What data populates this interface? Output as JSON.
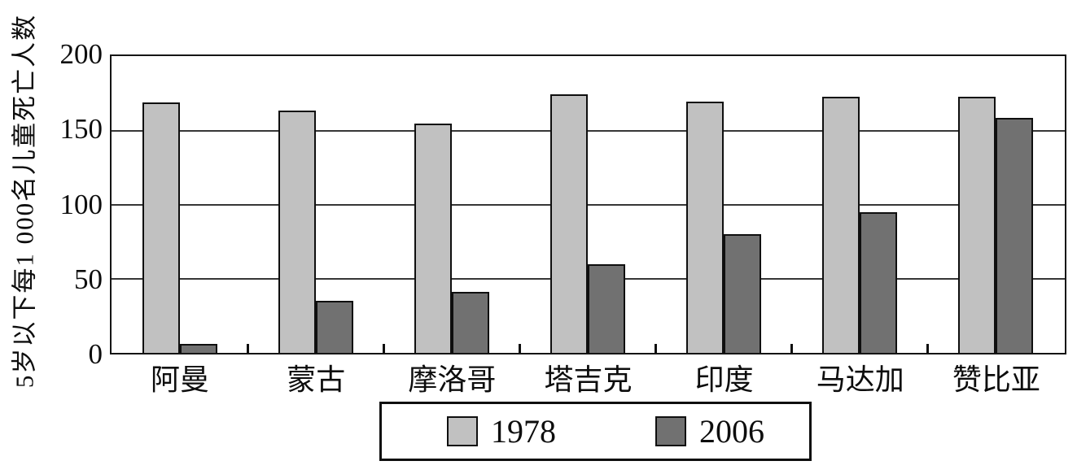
{
  "chart_data": {
    "type": "bar",
    "title": "",
    "ylabel": "5岁以下每1 000名儿童死亡人数",
    "xlabel": "",
    "categories": [
      "阿曼",
      "蒙古",
      "摩洛哥",
      "塔吉克",
      "印度",
      "马达加",
      "赞比亚"
    ],
    "series": [
      {
        "name": "1978",
        "color": "#c1c1c1",
        "values": [
          169,
          164,
          155,
          175,
          170,
          173,
          173
        ]
      },
      {
        "name": "2006",
        "color": "#717171",
        "values": [
          6,
          35,
          41,
          60,
          80,
          95,
          159
        ]
      }
    ],
    "ylim": [
      0,
      200
    ],
    "yticks": [
      0,
      50,
      100,
      150,
      200
    ],
    "grid": true,
    "legend_position": "bottom"
  },
  "colors": {
    "bar_1978": "#c1c1c1",
    "bar_2006": "#717171",
    "axis": "#151515",
    "gridline": "#363636",
    "background": "#ffffff",
    "text": "#0d0d0d"
  }
}
